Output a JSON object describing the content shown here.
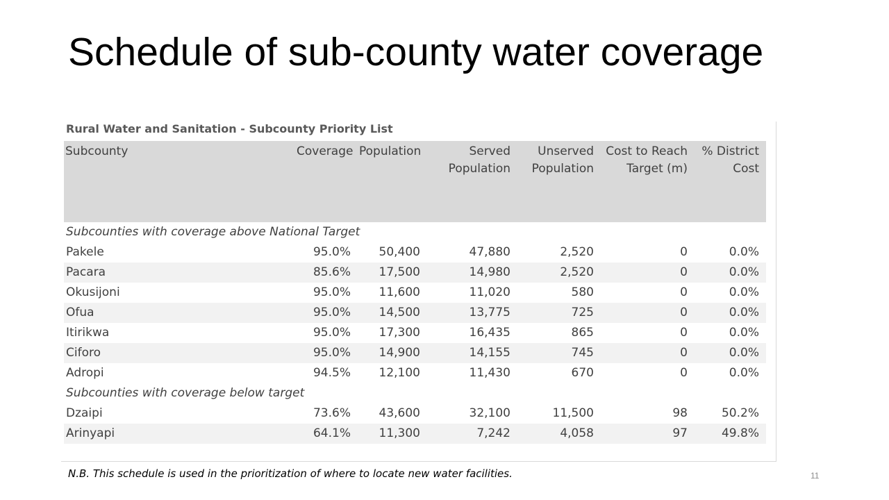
{
  "slide": {
    "title": "Schedule of sub-county water coverage",
    "footnote": "N.B. This schedule is used in the prioritization of where to locate new water facilities.",
    "page_number": "11"
  },
  "table": {
    "caption": "Rural Water and Sanitation - Subcounty Priority List",
    "headers": {
      "subcounty": "Subcounty",
      "coverage": "Coverage",
      "population": "Population",
      "served_line1": "Served",
      "served_line2": "Population",
      "unserved_line1": "Unserved",
      "unserved_line2": "Population",
      "cost_line1": "Cost to Reach",
      "cost_line2": "Target (m)",
      "pct_line1": "% District",
      "pct_line2": "Cost"
    },
    "section_above": "Subcounties with coverage above National Target",
    "rows_above": [
      {
        "subcounty": "Pakele",
        "coverage": "95.0%",
        "population": "50,400",
        "served": "47,880",
        "unserved": "2,520",
        "cost": "0",
        "pct": "0.0%"
      },
      {
        "subcounty": "Pacara",
        "coverage": "85.6%",
        "population": "17,500",
        "served": "14,980",
        "unserved": "2,520",
        "cost": "0",
        "pct": "0.0%"
      },
      {
        "subcounty": "Okusijoni",
        "coverage": "95.0%",
        "population": "11,600",
        "served": "11,020",
        "unserved": "580",
        "cost": "0",
        "pct": "0.0%"
      },
      {
        "subcounty": "Ofua",
        "coverage": "95.0%",
        "population": "14,500",
        "served": "13,775",
        "unserved": "725",
        "cost": "0",
        "pct": "0.0%"
      },
      {
        "subcounty": "Itirikwa",
        "coverage": "95.0%",
        "population": "17,300",
        "served": "16,435",
        "unserved": "865",
        "cost": "0",
        "pct": "0.0%"
      },
      {
        "subcounty": "Ciforo",
        "coverage": "95.0%",
        "population": "14,900",
        "served": "14,155",
        "unserved": "745",
        "cost": "0",
        "pct": "0.0%"
      },
      {
        "subcounty": "Adropi",
        "coverage": "94.5%",
        "population": "12,100",
        "served": "11,430",
        "unserved": "670",
        "cost": "0",
        "pct": "0.0%"
      }
    ],
    "section_below": "Subcounties with coverage below target",
    "rows_below": [
      {
        "subcounty": "Dzaipi",
        "coverage": "73.6%",
        "population": "43,600",
        "served": "32,100",
        "unserved": "11,500",
        "cost": "98",
        "pct": "50.2%"
      },
      {
        "subcounty": "Arinyapi",
        "coverage": "64.1%",
        "population": "11,300",
        "served": "7,242",
        "unserved": "4,058",
        "cost": "97",
        "pct": "49.8%"
      }
    ]
  }
}
